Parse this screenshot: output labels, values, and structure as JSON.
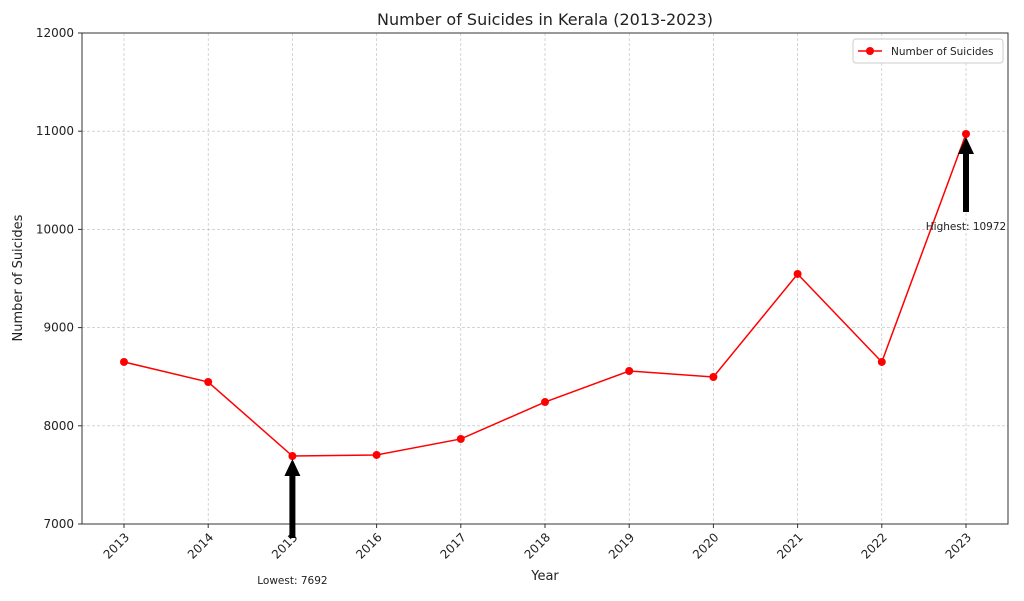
{
  "chart_data": {
    "type": "line",
    "title": "Number of Suicides in Kerala (2013-2023)",
    "xlabel": "Year",
    "ylabel": "Number of Suicides",
    "categories": [
      "2013",
      "2014",
      "2015",
      "2016",
      "2017",
      "2018",
      "2019",
      "2020",
      "2021",
      "2022",
      "2023"
    ],
    "series": [
      {
        "name": "Number of Suicides",
        "values": [
          8650,
          8446,
          7692,
          7703,
          7866,
          8242,
          8558,
          8497,
          9546,
          8650,
          10972
        ],
        "color": "#ff0000"
      }
    ],
    "ylim": [
      7000,
      12000
    ],
    "yticks": [
      7000,
      8000,
      9000,
      10000,
      11000,
      12000
    ],
    "grid": true,
    "legend": "top-right",
    "annotations": [
      {
        "text": "Lowest: 7692",
        "x": "2015",
        "y": 7692
      },
      {
        "text": "Highest: 10972",
        "x": "2023",
        "y": 10972
      }
    ]
  }
}
